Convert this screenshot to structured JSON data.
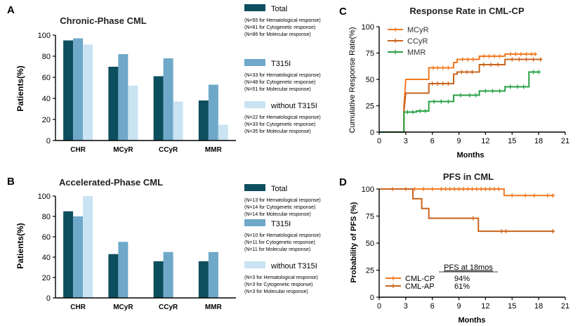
{
  "panels": {
    "A": {
      "letter": "A"
    },
    "B": {
      "letter": "B"
    },
    "C": {
      "letter": "C"
    },
    "D": {
      "letter": "D"
    }
  },
  "colors": {
    "total": "#0d4f5e",
    "t315i": "#6fa8c8",
    "without": "#c9e3f2",
    "mcyr": "#f07a22",
    "ccyr": "#c9641d",
    "mmr": "#27a146",
    "cmlcp": "#f07a22",
    "cmlap": "#c9641d"
  },
  "chart_data": [
    {
      "id": "A",
      "type": "bar",
      "title": "Chronic-Phase CML",
      "ylabel": "Patients(%)",
      "xlabel": "",
      "ylim": [
        0,
        100
      ],
      "yticks": [
        "0",
        "20",
        "40",
        "60",
        "80",
        "100"
      ],
      "categories": [
        "CHR",
        "MCyR",
        "CCyR",
        "MMR"
      ],
      "series": [
        {
          "name": "Total",
          "key": "total",
          "values": [
            95,
            70,
            61,
            38
          ]
        },
        {
          "name": "T315I",
          "key": "t315i",
          "values": [
            97,
            82,
            78,
            53
          ]
        },
        {
          "name": "without T315I",
          "key": "without",
          "values": [
            91,
            52,
            37,
            15
          ]
        }
      ],
      "legend": [
        {
          "name": "Total",
          "key": "total",
          "notes": [
            "(N=55 for Hematological response)",
            "(N=81 for Cytogenetic response)",
            "(N=86 for Molecular response)"
          ]
        },
        {
          "name": "T315I",
          "key": "t315i",
          "notes": [
            "(N=33 for Hematological response)",
            "(N=48 for Cytogenetic response)",
            "(N=51 for Molecular response)"
          ]
        },
        {
          "name": "without T315I",
          "key": "without",
          "notes": [
            "(N=22 for Hematological response)",
            "(N=33 for Cytogenetic response)",
            "(N=35 for Molecular response)"
          ]
        }
      ]
    },
    {
      "id": "B",
      "type": "bar",
      "title": "Accelerated-Phase CML",
      "ylabel": "Patients(%)",
      "xlabel": "",
      "ylim": [
        0,
        100
      ],
      "yticks": [
        "0",
        "20",
        "40",
        "60",
        "80",
        "100"
      ],
      "categories": [
        "CHR",
        "MCyR",
        "CCyR",
        "MMR"
      ],
      "series": [
        {
          "name": "Total",
          "key": "total",
          "values": [
            85,
            43,
            36,
            36
          ]
        },
        {
          "name": "T315I",
          "key": "t315i",
          "values": [
            80,
            55,
            45,
            45
          ]
        },
        {
          "name": "without T315I",
          "key": "without",
          "values": [
            100,
            null,
            null,
            null
          ]
        }
      ],
      "legend": [
        {
          "name": "Total",
          "key": "total",
          "notes": [
            "(N=13 for Hematological response)",
            "(N=14 for Cytogenetic response)",
            "(N=14 for Molecular response)"
          ]
        },
        {
          "name": "T315I",
          "key": "t315i",
          "notes": [
            "(N=10 for Hematological response)",
            "(N=11 for Cytogenetic response)",
            "(N=11 for Molecular response)"
          ]
        },
        {
          "name": "without T315I",
          "key": "without",
          "notes": [
            "(N=3 for Hematological response)",
            "(N=3 for Cytogenetic response)",
            "(N=3 for Molecular response)"
          ]
        }
      ]
    },
    {
      "id": "C",
      "type": "line",
      "title": "Response Rate in CML-CP",
      "xlabel": "Months",
      "ylabel": "Cumulative Response Rate(%)",
      "xlim": [
        0,
        21
      ],
      "ylim": [
        0,
        100
      ],
      "xticks": [
        0,
        3,
        6,
        9,
        12,
        15,
        18,
        21
      ],
      "yticks": [
        0,
        25,
        50,
        75,
        100
      ],
      "series": [
        {
          "name": "MCyR",
          "key": "mcyr",
          "steps": [
            [
              0,
              0
            ],
            [
              2.8,
              0
            ],
            [
              2.8,
              25
            ],
            [
              3.0,
              50
            ],
            [
              5.6,
              50
            ],
            [
              5.6,
              61
            ],
            [
              8.4,
              61
            ],
            [
              8.4,
              66
            ],
            [
              8.8,
              66
            ],
            [
              8.8,
              69
            ],
            [
              11.3,
              69
            ],
            [
              11.3,
              72
            ],
            [
              14.2,
              72
            ],
            [
              14.2,
              74
            ],
            [
              17.8,
              74
            ]
          ],
          "censor": [
            6.1,
            6.6,
            7.2,
            7.8,
            9.4,
            10.0,
            10.6,
            11.8,
            12.4,
            13.0,
            13.6,
            14.8,
            15.4,
            16.0,
            16.6,
            17.2,
            17.6
          ]
        },
        {
          "name": "CCyR",
          "key": "ccyr",
          "steps": [
            [
              0,
              0
            ],
            [
              2.8,
              0
            ],
            [
              2.8,
              20
            ],
            [
              3.0,
              37
            ],
            [
              5.6,
              37
            ],
            [
              5.6,
              46
            ],
            [
              8.4,
              46
            ],
            [
              8.4,
              55
            ],
            [
              8.8,
              55
            ],
            [
              8.8,
              57
            ],
            [
              11.3,
              57
            ],
            [
              11.3,
              64
            ],
            [
              14.2,
              64
            ],
            [
              14.2,
              69
            ],
            [
              18.4,
              69
            ]
          ],
          "censor": [
            6.0,
            6.6,
            7.2,
            7.8,
            9.3,
            9.9,
            10.5,
            11.8,
            12.6,
            13.4,
            15.0,
            15.8,
            16.6,
            17.4,
            18.2
          ]
        },
        {
          "name": "MMR",
          "key": "mmr",
          "steps": [
            [
              0,
              0
            ],
            [
              2.8,
              0
            ],
            [
              2.8,
              19
            ],
            [
              4.2,
              19
            ],
            [
              4.2,
              20
            ],
            [
              5.6,
              20
            ],
            [
              5.6,
              29
            ],
            [
              8.4,
              29
            ],
            [
              8.4,
              35
            ],
            [
              11.3,
              35
            ],
            [
              11.3,
              39
            ],
            [
              14.2,
              39
            ],
            [
              14.2,
              43
            ],
            [
              16.9,
              43
            ],
            [
              16.9,
              57
            ],
            [
              18.2,
              57
            ]
          ],
          "censor": [
            3.2,
            3.8,
            4.6,
            5.2,
            6.2,
            7.0,
            7.8,
            9.2,
            10.2,
            10.9,
            12.0,
            12.8,
            13.6,
            14.8,
            15.6,
            16.3,
            17.4,
            18.0
          ]
        }
      ],
      "legend": [
        "MCyR",
        "CCyR",
        "MMR"
      ]
    },
    {
      "id": "D",
      "type": "line",
      "title": "PFS in CML",
      "xlabel": "Months",
      "ylabel": "Probability of PFS (%)",
      "xlim": [
        0,
        21
      ],
      "ylim": [
        0,
        100
      ],
      "xticks": [
        0,
        3,
        6,
        9,
        12,
        15,
        18,
        21
      ],
      "yticks": [
        0,
        25,
        50,
        75,
        100
      ],
      "series": [
        {
          "name": "CML-CP",
          "key": "cmlcp",
          "steps": [
            [
              0,
              100
            ],
            [
              14.1,
              100
            ],
            [
              14.1,
              94
            ],
            [
              19.8,
              94
            ]
          ],
          "censor": [
            1.5,
            3.0,
            4.0,
            5.0,
            6.0,
            7.0,
            7.5,
            8.0,
            8.5,
            9.0,
            9.5,
            10.0,
            10.5,
            11.0,
            11.5,
            12.0,
            12.5,
            13.0,
            13.5,
            15.0,
            16.5,
            17.5,
            19.0,
            19.6
          ]
        },
        {
          "name": "CML-AP",
          "key": "cmlap",
          "steps": [
            [
              0,
              100
            ],
            [
              3.8,
              100
            ],
            [
              3.8,
              91
            ],
            [
              4.8,
              91
            ],
            [
              4.8,
              82
            ],
            [
              5.6,
              82
            ],
            [
              5.6,
              73
            ],
            [
              11.2,
              73
            ],
            [
              11.2,
              61
            ],
            [
              19.8,
              61
            ]
          ],
          "censor": [
            10.6,
            13.8,
            14.3,
            19.6
          ]
        }
      ],
      "legend_header": "PFS at 18mos",
      "legend": [
        {
          "name": "CML-CP",
          "key": "cmlcp",
          "value": "94%"
        },
        {
          "name": "CML-AP",
          "key": "cmlap",
          "value": "61%"
        }
      ]
    }
  ]
}
